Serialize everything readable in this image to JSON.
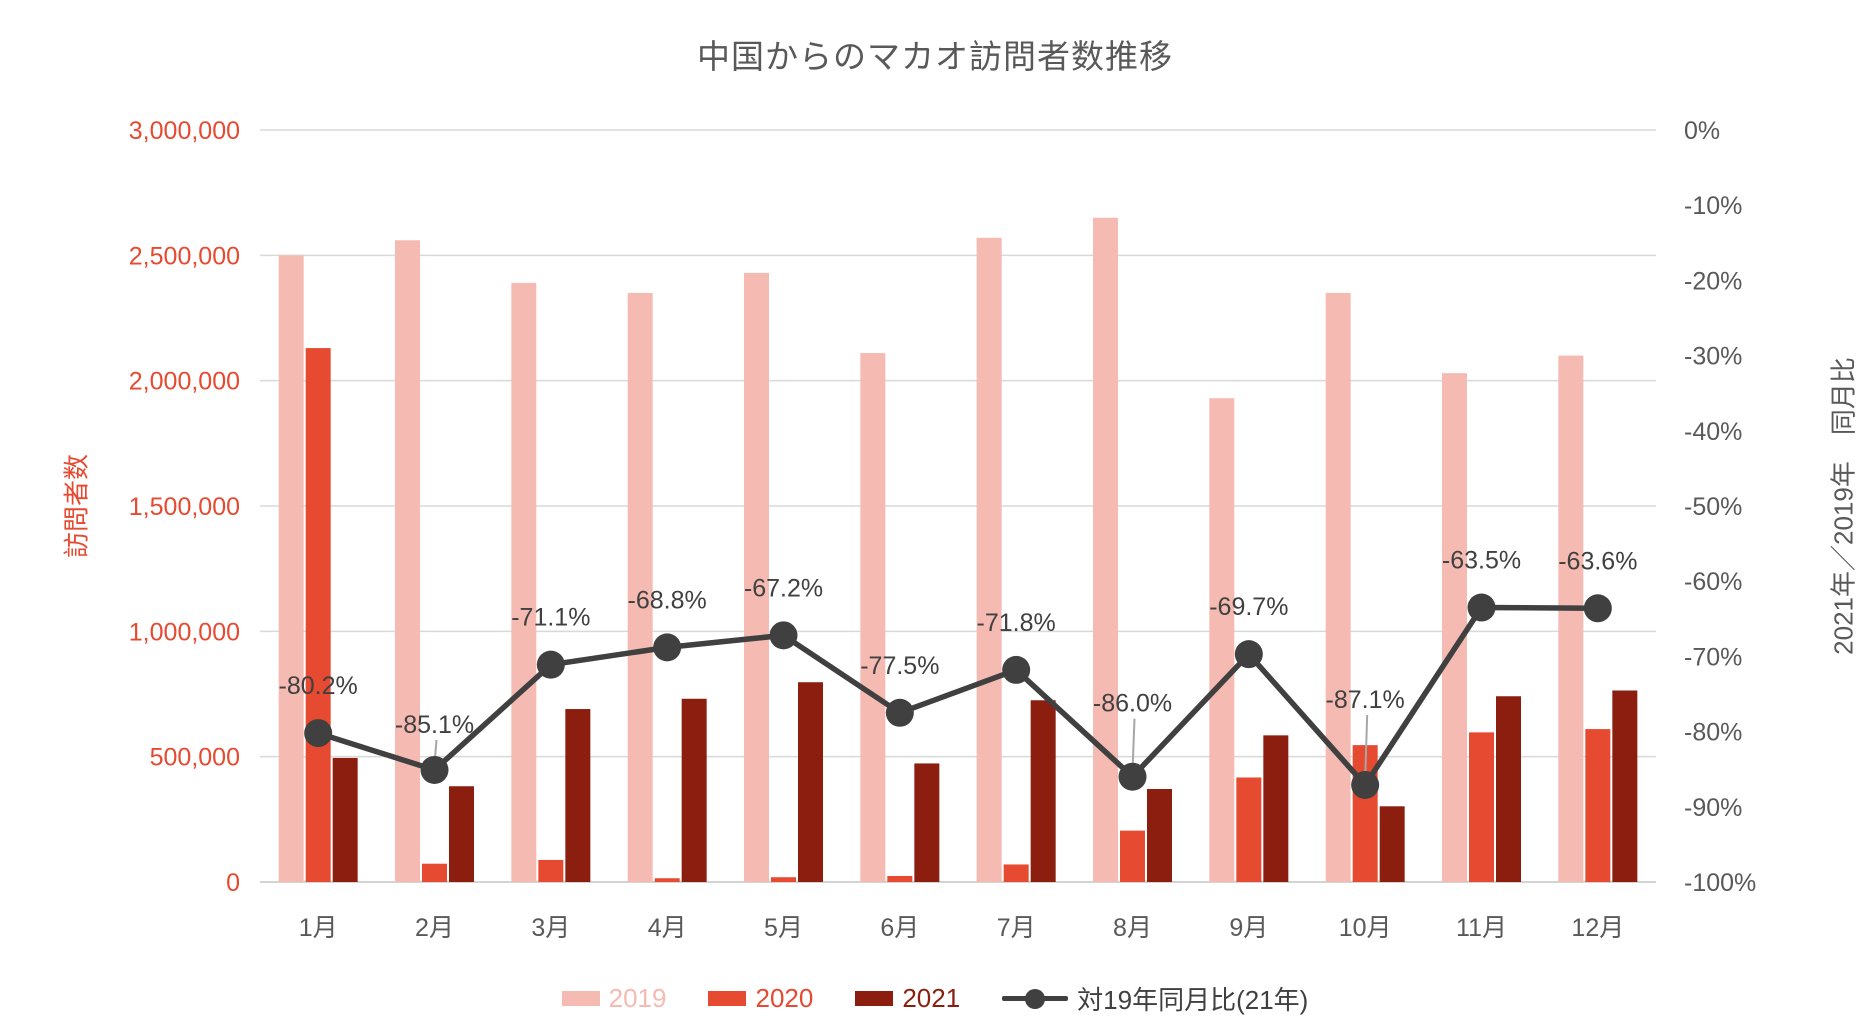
{
  "title": "中国からのマカオ訪問者数推移",
  "chart_data": {
    "type": "combo-bar-line",
    "title": "中国からのマカオ訪問者数推移",
    "categories": [
      "1月",
      "2月",
      "3月",
      "4月",
      "5月",
      "6月",
      "7月",
      "8月",
      "9月",
      "10月",
      "11月",
      "12月"
    ],
    "bar_series": [
      {
        "name": "2019",
        "color": "#F5BAB1",
        "values": [
          2500000,
          2560000,
          2390000,
          2350000,
          2430000,
          2110000,
          2570000,
          2650000,
          1930000,
          2350000,
          2030000,
          2100000
        ]
      },
      {
        "name": "2020",
        "color": "#E64A31",
        "values": [
          2130000,
          73000,
          88000,
          15000,
          19000,
          24000,
          70000,
          205000,
          417000,
          546000,
          597000,
          610000
        ]
      },
      {
        "name": "2021",
        "color": "#8C1E0F",
        "values": [
          495000,
          382000,
          690000,
          731000,
          797000,
          473000,
          725000,
          371000,
          585000,
          302000,
          741000,
          764000
        ]
      }
    ],
    "line_series": {
      "name": "対19年同月比(21年)",
      "color": "#404040",
      "axis": "right",
      "values_percent": [
        -80.2,
        -85.1,
        -71.1,
        -68.8,
        -67.2,
        -77.5,
        -71.8,
        -86.0,
        -69.7,
        -87.1,
        -63.5,
        -63.6
      ],
      "data_labels": [
        "-80.2%",
        "-85.1%",
        "-71.1%",
        "-68.8%",
        "-67.2%",
        "-77.5%",
        "-71.8%",
        "-86.0%",
        "-69.7%",
        "-87.1%",
        "-63.5%",
        "-63.6%"
      ],
      "leader_line_categories": [
        "2月",
        "8月",
        "10月"
      ]
    },
    "left_axis": {
      "title": "訪問者数",
      "min": 0,
      "max": 3000000,
      "tick_step": 500000,
      "tick_labels": [
        "3,000,000",
        "2,500,000",
        "2,000,000",
        "1,500,000",
        "1,000,000",
        "500,000",
        "0"
      ],
      "text_color": "#E64A31"
    },
    "right_axis": {
      "title": "2021年／2019年　同月比",
      "min": -100,
      "max": 0,
      "tick_step": 10,
      "tick_labels": [
        "0%",
        "-10%",
        "-20%",
        "-30%",
        "-40%",
        "-50%",
        "-60%",
        "-70%",
        "-80%",
        "-90%",
        "-100%"
      ],
      "text_color": "#595959"
    },
    "grid": {
      "show_horizontal": true,
      "color": "#D9D9D9"
    },
    "legend": {
      "position": "bottom-center",
      "items": [
        {
          "label": "2019",
          "marker": "swatch",
          "color": "#F5BAB1"
        },
        {
          "label": "2020",
          "marker": "swatch",
          "color": "#E64A31"
        },
        {
          "label": "2021",
          "marker": "swatch",
          "color": "#8C1E0F"
        },
        {
          "label": "対19年同月比(21年)",
          "marker": "line-dot",
          "color": "#404040"
        }
      ]
    }
  },
  "colors": {
    "title_text": "#595959",
    "category_text": "#595959",
    "data_label": "#404040",
    "gridline": "#D9D9D9",
    "axis_line": "#C6C6C6",
    "leader_line": "#A6A6A6",
    "background": "#FFFFFF"
  }
}
